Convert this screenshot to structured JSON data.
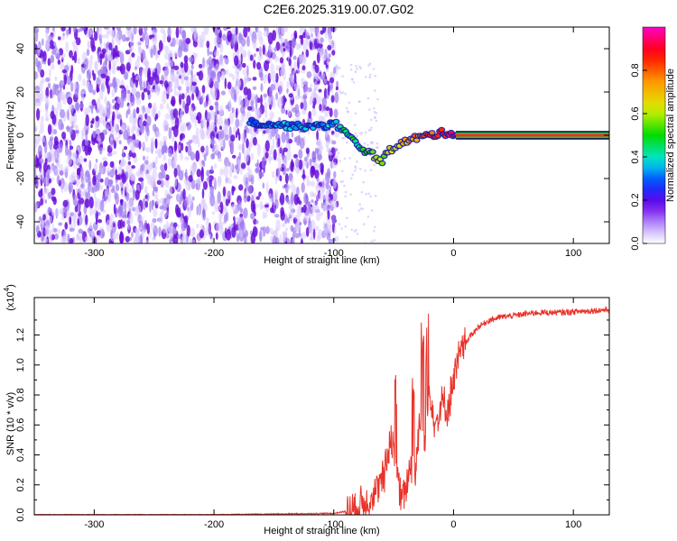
{
  "title": "C2E6.2025.319.00.07.G02",
  "chart_data": [
    {
      "type": "heatmap",
      "title": "C2E6.2025.319.00.07.G02",
      "xlabel": "Height of straight line (km)",
      "ylabel": "Frequency (Hz)",
      "xlim": [
        -350,
        130
      ],
      "ylim": [
        -50,
        50
      ],
      "xticks": [
        -300,
        -200,
        -100,
        0,
        100
      ],
      "yticks": [
        -40,
        -20,
        0,
        20,
        40
      ],
      "noise_region_x": [
        -350,
        -97
      ],
      "signal_track": {
        "x": [
          -170,
          -150,
          -130,
          -110,
          -100,
          -90,
          -80,
          -70,
          -60,
          -50,
          -40,
          -30,
          -20,
          -10,
          0,
          5,
          130
        ],
        "freq": [
          6,
          5,
          4,
          4,
          6,
          1,
          -5,
          -8,
          -12,
          -5,
          -3,
          -1,
          0,
          1,
          1,
          0,
          0
        ]
      },
      "colorbar": {
        "label": "Normalized spectral amplitude",
        "ticks": [
          0.0,
          0.2,
          0.4,
          0.6,
          0.8
        ],
        "range": [
          0,
          1
        ]
      }
    },
    {
      "type": "line",
      "xlabel": "Height of straight line (km)",
      "ylabel": "SNR (10 * v/v)",
      "scale_label": "(x10",
      "scale_exp": "4",
      "xlim": [
        -350,
        130
      ],
      "ylim": [
        0,
        1.45
      ],
      "xticks": [
        -300,
        -200,
        -100,
        0,
        100
      ],
      "yticks": [
        0.0,
        0.2,
        0.4,
        0.6,
        0.8,
        1.0,
        1.2
      ],
      "series": [
        {
          "color": "#e8332a",
          "x": [
            -350,
            -200,
            -100,
            -85,
            -75,
            -65,
            -58,
            -52,
            -48,
            -44,
            -40,
            -36,
            -32,
            -28,
            -24,
            -20,
            -15,
            -10,
            -5,
            0,
            5,
            10,
            20,
            30,
            40,
            50,
            70,
            90,
            110,
            130
          ],
          "values": [
            0.0,
            0.0,
            0.01,
            0.03,
            0.08,
            0.15,
            0.25,
            0.55,
            0.3,
            0.1,
            0.15,
            0.35,
            0.25,
            0.7,
            0.45,
            0.85,
            0.6,
            0.75,
            0.7,
            0.9,
            1.05,
            1.15,
            1.25,
            1.3,
            1.32,
            1.33,
            1.35,
            1.35,
            1.36,
            1.37
          ],
          "spikes_x": [
            -48,
            -34,
            -26,
            -22
          ]
        }
      ]
    }
  ]
}
